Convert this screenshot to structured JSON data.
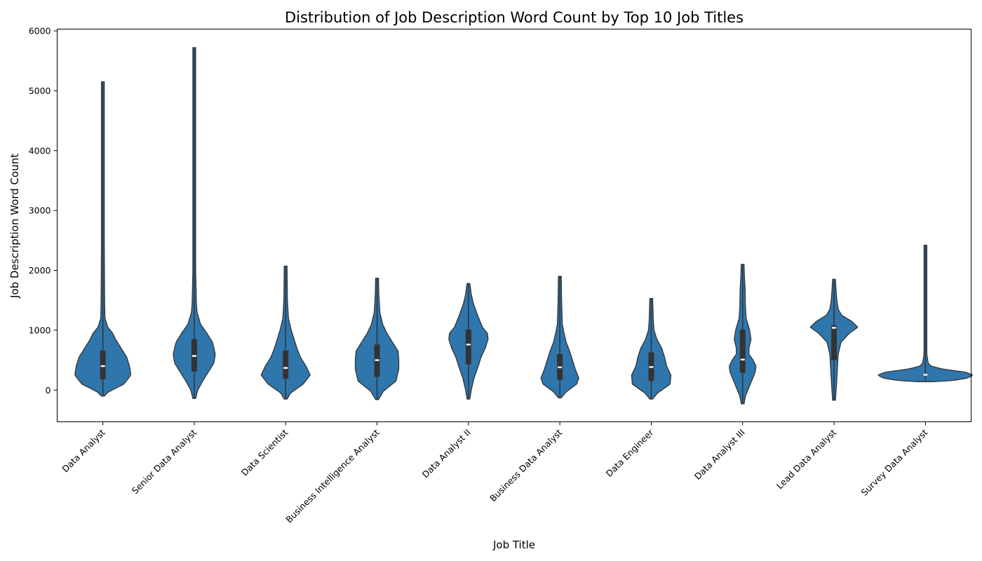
{
  "chart_data": {
    "type": "violin",
    "title": "Distribution of Job Description Word Count by Top 10 Job Titles",
    "xlabel": "Job Title",
    "ylabel": "Job Description Word Count",
    "ylim": [
      -530,
      6030
    ],
    "yticks": [
      0,
      1000,
      2000,
      3000,
      4000,
      5000,
      6000
    ],
    "grid": false,
    "fill_color": "#2f76ad",
    "edge_color": "#333333",
    "categories": [
      "Data Analyst",
      "Senior Data Analyst",
      "Data Scientist",
      "Business Intelligence Analyst",
      "Data Analyst II",
      "Business Data Analyst",
      "Data Engineer",
      "Data Analyst III",
      "Lead Data Analyst",
      "Survey Data Analyst"
    ],
    "series": [
      {
        "category": "Data Analyst",
        "min": -100,
        "max": 5150,
        "q1": 180,
        "median": 400,
        "q3": 660,
        "density": [
          [
            -100,
            2
          ],
          [
            -30,
            8
          ],
          [
            100,
            30
          ],
          [
            250,
            40
          ],
          [
            400,
            38
          ],
          [
            550,
            34
          ],
          [
            700,
            26
          ],
          [
            850,
            18
          ],
          [
            950,
            14
          ],
          [
            1050,
            7
          ],
          [
            1200,
            3
          ],
          [
            1500,
            2.5
          ],
          [
            2500,
            2
          ],
          [
            5150,
            2
          ]
        ]
      },
      {
        "category": "Senior Data Analyst",
        "min": -140,
        "max": 5720,
        "q1": 310,
        "median": 570,
        "q3": 850,
        "density": [
          [
            -140,
            2
          ],
          [
            0,
            5
          ],
          [
            150,
            12
          ],
          [
            300,
            20
          ],
          [
            450,
            28
          ],
          [
            600,
            30
          ],
          [
            800,
            26
          ],
          [
            950,
            18
          ],
          [
            1100,
            9
          ],
          [
            1300,
            4
          ],
          [
            1450,
            3
          ],
          [
            2000,
            2
          ],
          [
            5720,
            2
          ]
        ]
      },
      {
        "category": "Data Scientist",
        "min": -150,
        "max": 2070,
        "q1": 190,
        "median": 370,
        "q3": 660,
        "density": [
          [
            -150,
            2
          ],
          [
            -50,
            7
          ],
          [
            100,
            25
          ],
          [
            250,
            35
          ],
          [
            400,
            29
          ],
          [
            550,
            21
          ],
          [
            700,
            16
          ],
          [
            850,
            12
          ],
          [
            1000,
            8
          ],
          [
            1200,
            4
          ],
          [
            1500,
            2.5
          ],
          [
            2070,
            2
          ]
        ]
      },
      {
        "category": "Business Intelligence Analyst",
        "min": -160,
        "max": 1870,
        "q1": 220,
        "median": 500,
        "q3": 760,
        "density": [
          [
            -160,
            2
          ],
          [
            -20,
            9
          ],
          [
            150,
            27
          ],
          [
            350,
            31
          ],
          [
            500,
            31
          ],
          [
            650,
            30
          ],
          [
            800,
            22
          ],
          [
            950,
            14
          ],
          [
            1100,
            8
          ],
          [
            1300,
            4
          ],
          [
            1600,
            2.5
          ],
          [
            1870,
            2
          ]
        ]
      },
      {
        "category": "Data Analyst II",
        "min": -150,
        "max": 1780,
        "q1": 430,
        "median": 760,
        "q3": 1010,
        "density": [
          [
            -150,
            2
          ],
          [
            0,
            4
          ],
          [
            200,
            8
          ],
          [
            400,
            14
          ],
          [
            550,
            18
          ],
          [
            700,
            24
          ],
          [
            850,
            28
          ],
          [
            950,
            27
          ],
          [
            1050,
            20
          ],
          [
            1250,
            13
          ],
          [
            1450,
            7
          ],
          [
            1600,
            4
          ],
          [
            1780,
            2
          ]
        ]
      },
      {
        "category": "Business Data Analyst",
        "min": -130,
        "max": 1900,
        "q1": 170,
        "median": 380,
        "q3": 600,
        "density": [
          [
            -130,
            2
          ],
          [
            -30,
            9
          ],
          [
            100,
            24
          ],
          [
            200,
            27
          ],
          [
            350,
            22
          ],
          [
            500,
            18
          ],
          [
            650,
            14
          ],
          [
            800,
            9
          ],
          [
            950,
            6
          ],
          [
            1100,
            3.5
          ],
          [
            1500,
            2.5
          ],
          [
            1900,
            2
          ]
        ]
      },
      {
        "category": "Data Engineer",
        "min": -150,
        "max": 1530,
        "q1": 150,
        "median": 385,
        "q3": 630,
        "density": [
          [
            -150,
            2
          ],
          [
            -50,
            9
          ],
          [
            100,
            27
          ],
          [
            250,
            28
          ],
          [
            400,
            22
          ],
          [
            550,
            19
          ],
          [
            700,
            15
          ],
          [
            850,
            8
          ],
          [
            1000,
            4
          ],
          [
            1150,
            3
          ],
          [
            1530,
            2
          ]
        ]
      },
      {
        "category": "Data Analyst III",
        "min": -230,
        "max": 2100,
        "q1": 290,
        "median": 510,
        "q3": 1010,
        "density": [
          [
            -230,
            2
          ],
          [
            -100,
            4
          ],
          [
            100,
            11
          ],
          [
            300,
            18
          ],
          [
            400,
            19
          ],
          [
            500,
            15
          ],
          [
            600,
            9
          ],
          [
            700,
            9
          ],
          [
            850,
            12
          ],
          [
            1000,
            10
          ],
          [
            1200,
            5
          ],
          [
            1400,
            4
          ],
          [
            1700,
            3.5
          ],
          [
            1900,
            2.5
          ],
          [
            2100,
            2
          ]
        ]
      },
      {
        "category": "Lead Data Analyst",
        "min": -170,
        "max": 1850,
        "q1": 500,
        "median": 1040,
        "q3": 1080,
        "density": [
          [
            -170,
            2
          ],
          [
            0,
            3
          ],
          [
            200,
            4
          ],
          [
            400,
            5
          ],
          [
            600,
            6
          ],
          [
            800,
            10
          ],
          [
            950,
            22
          ],
          [
            1050,
            34
          ],
          [
            1150,
            25
          ],
          [
            1250,
            11
          ],
          [
            1350,
            6
          ],
          [
            1500,
            4
          ],
          [
            1650,
            3
          ],
          [
            1850,
            2
          ]
        ]
      },
      {
        "category": "Survey Data Analyst",
        "min": 140,
        "max": 2420,
        "q1": 245,
        "median": 255,
        "q3": 265,
        "density": [
          [
            140,
            10
          ],
          [
            160,
            40
          ],
          [
            200,
            60
          ],
          [
            250,
            68
          ],
          [
            300,
            57
          ],
          [
            350,
            25
          ],
          [
            400,
            8
          ],
          [
            450,
            4
          ],
          [
            600,
            2
          ],
          [
            2420,
            2
          ]
        ]
      }
    ]
  }
}
